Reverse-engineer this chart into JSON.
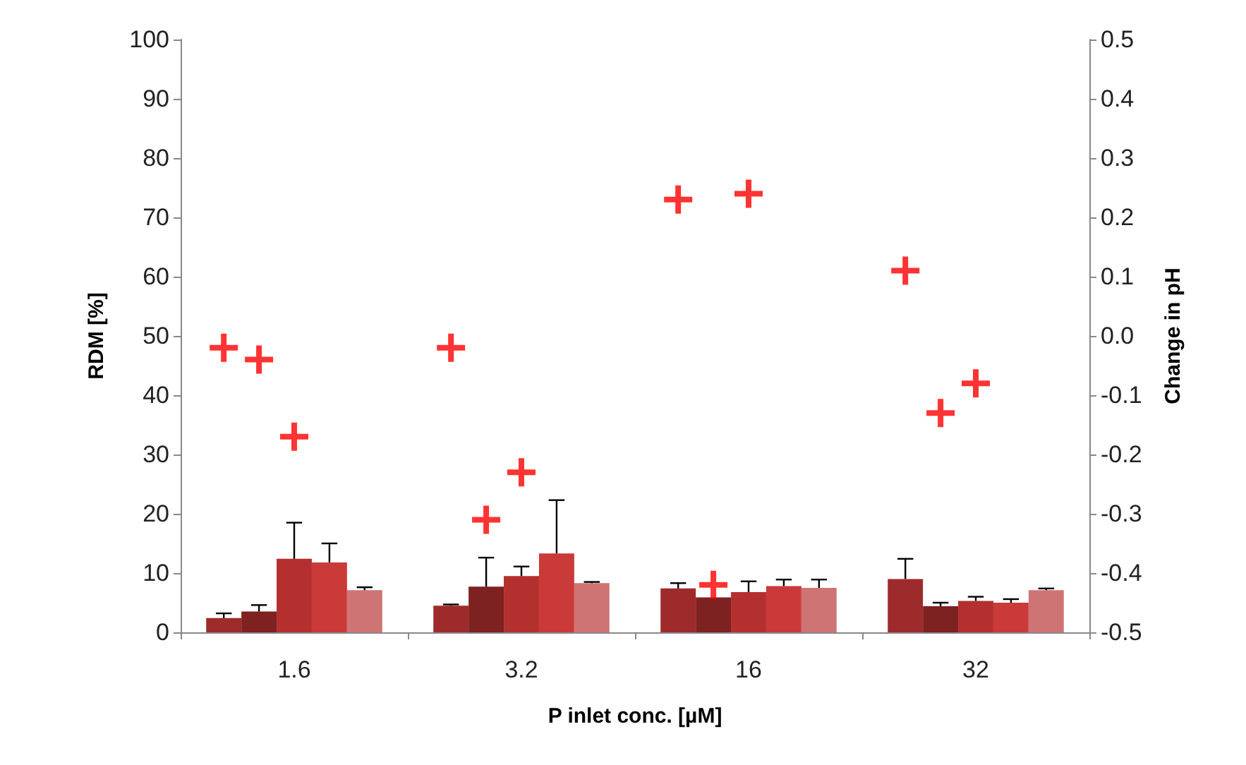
{
  "chart_data": {
    "type": "bar",
    "xlabel": "P inlet conc. [µM]",
    "ylabel": "RDM [%]",
    "y2label": "Change in pH",
    "categories": [
      "1.6",
      "3.2",
      "16",
      "32"
    ],
    "series": [
      {
        "color": "#9e2b2b",
        "values": [
          2.4,
          4.5,
          7.4,
          9.0
        ],
        "errors": [
          [
            2.4,
            3.2
          ],
          [
            4.5,
            4.7
          ],
          [
            7.4,
            8.3
          ],
          [
            9.0,
            12.4
          ]
        ]
      },
      {
        "color": "#7d2121",
        "values": [
          3.5,
          7.7,
          5.9,
          4.4
        ],
        "errors": [
          [
            3.5,
            4.6
          ],
          [
            7.7,
            12.6
          ],
          null,
          [
            4.4,
            5.0
          ]
        ]
      },
      {
        "color": "#b3302f",
        "values": [
          12.4,
          9.5,
          6.8,
          5.3
        ],
        "errors": [
          [
            12.4,
            18.5
          ],
          [
            9.5,
            11.1
          ],
          [
            6.8,
            8.6
          ],
          [
            5.3,
            6.0
          ]
        ]
      },
      {
        "color": "#c93a38",
        "values": [
          11.8,
          13.3,
          7.8,
          5.0
        ],
        "errors": [
          [
            11.8,
            15.0
          ],
          [
            13.3,
            22.3
          ],
          [
            7.8,
            8.9
          ],
          [
            5.0,
            5.6
          ]
        ]
      },
      {
        "color": "#cf7474",
        "values": [
          7.1,
          8.3,
          7.5,
          7.1
        ],
        "errors": [
          [
            7.1,
            7.6
          ],
          [
            8.3,
            8.5
          ],
          [
            7.5,
            8.9
          ],
          [
            7.1,
            7.4
          ]
        ]
      },
      {
        "type": "scatter",
        "axis": "y2",
        "color": "#ff0000",
        "values": [
          -0.02,
          -0.02,
          0.23,
          0.11
        ]
      },
      {
        "type": "scatter",
        "axis": "y2",
        "color": "#ff0000",
        "values": [
          -0.04,
          -0.31,
          -0.42,
          -0.13
        ]
      },
      {
        "type": "scatter",
        "axis": "y2",
        "color": "#ff0000",
        "values": [
          -0.17,
          -0.23,
          0.24,
          -0.08
        ]
      }
    ],
    "ylim": [
      0,
      100
    ],
    "yticks": [
      0,
      10,
      20,
      30,
      40,
      50,
      60,
      70,
      80,
      90,
      100
    ],
    "y2lim": [
      -0.5,
      0.5
    ],
    "y2ticks": [
      -0.5,
      -0.4,
      -0.3,
      -0.2,
      -0.1,
      {
        "value": 0,
        "label": "0.0"
      },
      0.1,
      0.2,
      0.3,
      0.4,
      0.5
    ],
    "marker": "cross",
    "grid": false
  }
}
